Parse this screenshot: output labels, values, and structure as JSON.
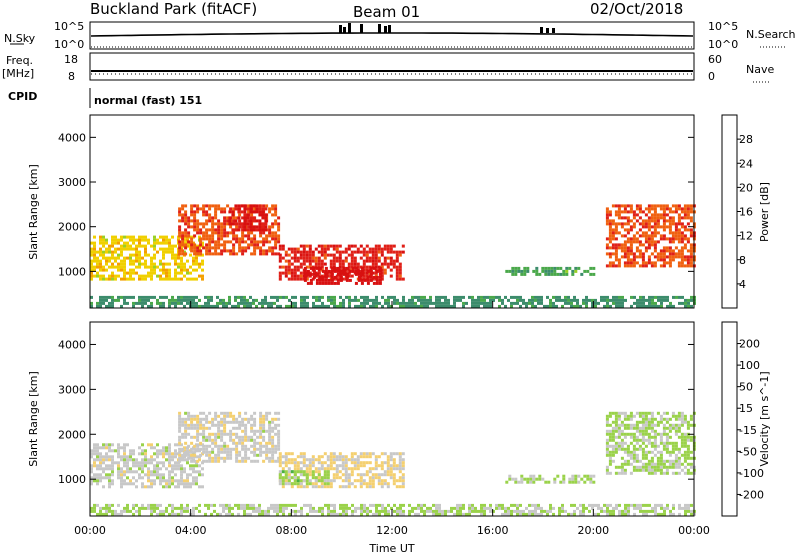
{
  "header": {
    "title": "Buckland Park (fitACF)",
    "beam": "Beam 01",
    "date": "02/Oct/2018"
  },
  "strips": {
    "nsky_label": "N.Sky",
    "nsearch_label": "N.Search",
    "noise_ticks": [
      "10^5",
      "10^0"
    ],
    "freq_label": "Freq.",
    "freq_unit": "[MHz]",
    "freq_ticks": [
      "18",
      "8"
    ],
    "nave_label": "Nave",
    "nave_ticks": [
      "60",
      "0"
    ],
    "cpid_label": "CPID",
    "cpid_value": "normal (fast) 151"
  },
  "colors": {
    "power_scale": [
      "#1010e0",
      "#2848b0",
      "#2a6fb0",
      "#3c8c6c",
      "#4aa84a",
      "#9ad024",
      "#f0d000",
      "#f4a000",
      "#f06010",
      "#e02018",
      "#d81010"
    ],
    "velocity_scale": [
      "#e01010",
      "#f04820",
      "#f08020",
      "#f4b030",
      "#f4d070",
      "#c8c8c8",
      "#9ad24a",
      "#4ab040",
      "#2a9070",
      "#3050b0",
      "#1a1ab0"
    ]
  },
  "chart_data": [
    {
      "type": "heatmap",
      "panel": "power",
      "ylabel": "Slant Range [km]",
      "ylim": [
        180,
        4500
      ],
      "y_ticks": [
        "1000",
        "2000",
        "3000",
        "4000"
      ],
      "colorbar_label": "Power [dB]",
      "colorbar_ticks": [
        "4",
        "8",
        "12",
        "16",
        "20",
        "24",
        "28"
      ],
      "colorbar_range": [
        0,
        30
      ],
      "echo_bands": [
        {
          "start_h": 0.0,
          "end_h": 4.5,
          "range_low": 800,
          "range_high": 1800,
          "value": 18
        },
        {
          "start_h": 3.5,
          "end_h": 7.5,
          "range_low": 1400,
          "range_high": 2500,
          "value": 24
        },
        {
          "start_h": 5.5,
          "end_h": 7.0,
          "range_low": 1900,
          "range_high": 2500,
          "value": 28
        },
        {
          "start_h": 7.5,
          "end_h": 12.5,
          "range_low": 850,
          "range_high": 1600,
          "value": 26
        },
        {
          "start_h": 8.5,
          "end_h": 11.5,
          "range_low": 700,
          "range_high": 1100,
          "value": 30
        },
        {
          "start_h": 16.5,
          "end_h": 20.0,
          "range_low": 900,
          "range_high": 1100,
          "value": 12
        },
        {
          "start_h": 20.5,
          "end_h": 24.0,
          "range_low": 1100,
          "range_high": 2500,
          "value": 24
        },
        {
          "start_h": 0.0,
          "end_h": 24.0,
          "range_low": 200,
          "range_high": 450,
          "value": 10
        }
      ]
    },
    {
      "type": "heatmap",
      "panel": "velocity",
      "ylabel": "Slant Range [km]",
      "ylim": [
        180,
        4500
      ],
      "y_ticks": [
        "1000",
        "2000",
        "3000",
        "4000"
      ],
      "xlabel": "Time UT",
      "x_ticks": [
        "00:00",
        "04:00",
        "08:00",
        "12:00",
        "16:00",
        "20:00",
        "00:00"
      ],
      "colorbar_label": "Velocity [m s^-1]",
      "colorbar_ticks": [
        "-200",
        "-100",
        "-50",
        "-15",
        "15",
        "50",
        "100",
        "200"
      ],
      "colorbar_range": [
        -250,
        250
      ],
      "echo_bands": [
        {
          "start_h": 0.0,
          "end_h": 4.5,
          "range_low": 800,
          "range_high": 1800,
          "value": 0
        },
        {
          "start_h": 3.5,
          "end_h": 7.5,
          "range_low": 1400,
          "range_high": 2500,
          "value": -5
        },
        {
          "start_h": 7.5,
          "end_h": 12.5,
          "range_low": 850,
          "range_high": 1600,
          "value": -30
        },
        {
          "start_h": 7.5,
          "end_h": 9.5,
          "range_low": 900,
          "range_high": 1200,
          "value": 40
        },
        {
          "start_h": 16.5,
          "end_h": 20.0,
          "range_low": 900,
          "range_high": 1100,
          "value": 20
        },
        {
          "start_h": 20.5,
          "end_h": 24.0,
          "range_low": 1100,
          "range_high": 2500,
          "value": 30
        },
        {
          "start_h": 0.0,
          "end_h": 24.0,
          "range_low": 200,
          "range_high": 450,
          "value": 25
        }
      ]
    }
  ]
}
